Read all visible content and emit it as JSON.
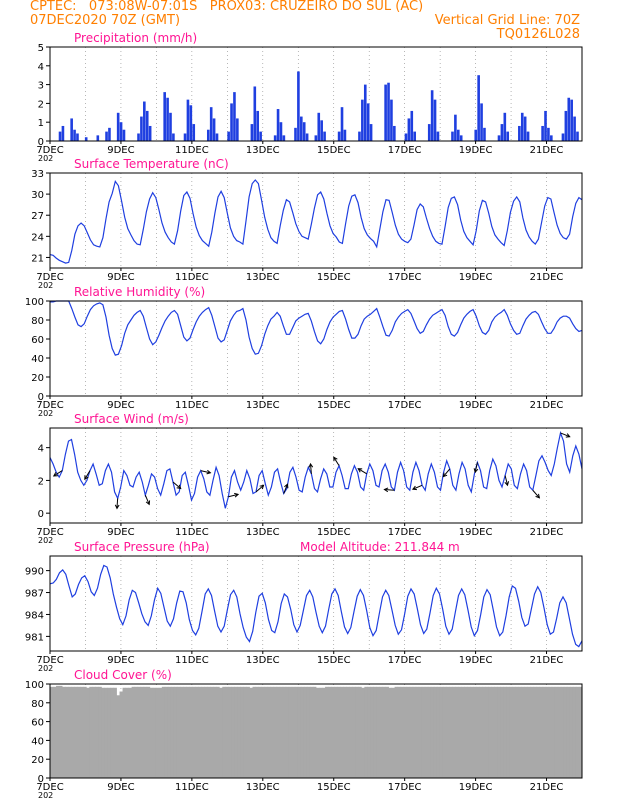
{
  "header": {
    "line1": "CPTEC:   073:08W-07:01S   PROX03: CRUZEIRO DO SUL (AC)",
    "line2_left": "07DEC2020 70Z (GMT)",
    "line2_right": "Vertical Grid Line: 70Z",
    "line3_right": "TQ0126L028",
    "color": "#ff7f00",
    "title_color": "#ff1493",
    "line_color": "#1f3fe0"
  },
  "x_axis": {
    "tick_labels": [
      "7DEC",
      "9DEC",
      "11DEC",
      "13DEC",
      "15DEC",
      "17DEC",
      "19DEC",
      "21DEC"
    ],
    "tick_days": [
      0,
      2,
      4,
      6,
      8,
      10,
      12,
      14
    ],
    "stub_label": "202",
    "range_days": [
      0,
      15
    ]
  },
  "chart_data": [
    {
      "type": "bar",
      "title": "Precipitation (mm/h)",
      "ylim": [
        0,
        5
      ],
      "yticks": [
        "0",
        "1",
        "2",
        "3",
        "4",
        "5"
      ],
      "sample_step_hours": 3,
      "values": [
        0,
        0,
        0,
        0.5,
        0.8,
        0,
        0,
        1.2,
        0.6,
        0.4,
        0,
        0,
        0.2,
        0,
        0,
        0,
        0.3,
        0,
        0,
        0.5,
        0.7,
        0,
        0,
        1.5,
        1.0,
        0.6,
        0,
        0,
        0,
        0,
        0.4,
        1.3,
        2.1,
        1.6,
        0.8,
        0,
        0,
        0,
        0,
        2.6,
        2.3,
        1.5,
        0.4,
        0,
        0,
        0,
        0.4,
        2.2,
        1.9,
        0.9,
        0,
        0,
        0,
        0,
        0.6,
        1.8,
        1.2,
        0.4,
        0,
        0,
        0,
        0.5,
        2.0,
        2.6,
        1.2,
        0,
        0,
        0,
        0,
        0.9,
        2.9,
        1.6,
        0.5,
        0,
        0,
        0,
        0,
        0.3,
        1.7,
        1.0,
        0.3,
        0,
        0,
        0,
        0.7,
        3.7,
        1.3,
        1.0,
        0.4,
        0,
        0,
        0.3,
        1.5,
        1.1,
        0.5,
        0,
        0,
        0,
        0,
        0.5,
        1.8,
        0.6,
        0,
        0,
        0,
        0,
        0.5,
        2.2,
        3.0,
        2.0,
        0.9,
        0,
        0,
        0,
        0,
        3.0,
        3.1,
        2.2,
        0.8,
        0,
        0,
        0,
        0.4,
        1.2,
        1.6,
        0.5,
        0,
        0,
        0,
        0,
        0.9,
        2.7,
        2.2,
        0.5,
        0,
        0,
        0,
        0,
        0.5,
        1.4,
        0.6,
        0.3,
        0,
        0,
        0,
        0,
        0.6,
        3.5,
        2.0,
        0.7,
        0,
        0,
        0,
        0,
        0.3,
        0.9,
        1.5,
        0.5,
        0,
        0,
        0,
        0.8,
        1.5,
        1.3,
        0.5,
        0,
        0,
        0,
        0,
        0.8,
        1.6,
        0.7,
        0.3,
        0,
        0,
        0,
        0.4,
        1.6,
        2.3,
        2.2,
        1.3,
        0.5,
        0
      ]
    },
    {
      "type": "line",
      "title": "Surface Temperature (nC)",
      "ylim": [
        19.5,
        33
      ],
      "yticks": [
        "21",
        "24",
        "27",
        "30",
        "33"
      ],
      "sample_step_hours": 3,
      "values": [
        21.4,
        21.3,
        20.9,
        20.6,
        20.4,
        20.2,
        20.3,
        22.0,
        24.3,
        25.5,
        25.9,
        25.5,
        24.5,
        23.5,
        22.8,
        22.6,
        22.5,
        23.8,
        26.5,
        28.9,
        30.1,
        31.8,
        31.2,
        29.0,
        26.7,
        25.1,
        24.2,
        23.4,
        22.9,
        22.8,
        25.0,
        27.5,
        29.3,
        30.2,
        29.5,
        27.8,
        25.9,
        24.6,
        23.8,
        23.2,
        22.9,
        24.8,
        27.6,
        29.8,
        30.3,
        29.4,
        27.2,
        25.3,
        24.1,
        23.4,
        23.0,
        22.6,
        24.6,
        27.3,
        29.6,
        30.4,
        29.5,
        27.3,
        25.2,
        24.0,
        23.4,
        23.2,
        22.9,
        26.2,
        29.6,
        31.5,
        32.0,
        31.5,
        29.1,
        26.7,
        25.0,
        23.8,
        23.3,
        23.0,
        25.5,
        27.7,
        29.2,
        28.9,
        27.4,
        25.8,
        24.7,
        24.0,
        23.8,
        23.6,
        25.7,
        28.0,
        29.9,
        30.3,
        29.3,
        27.3,
        25.5,
        24.4,
        23.9,
        23.2,
        23.0,
        25.8,
        28.3,
        29.7,
        29.9,
        28.8,
        26.7,
        25.1,
        24.2,
        23.7,
        23.3,
        22.5,
        25.0,
        27.5,
        29.2,
        29.1,
        27.4,
        25.6,
        24.3,
        23.6,
        23.3,
        23.1,
        23.6,
        25.6,
        27.8,
        28.6,
        28.2,
        26.6,
        25.1,
        24.0,
        23.3,
        23.0,
        22.9,
        25.4,
        28.1,
        29.4,
        29.6,
        28.5,
        26.3,
        24.7,
        23.8,
        23.3,
        22.8,
        24.8,
        27.6,
        29.1,
        28.9,
        27.3,
        25.4,
        24.2,
        23.6,
        23.1,
        22.7,
        24.8,
        27.4,
        29.0,
        29.6,
        28.9,
        26.6,
        24.9,
        23.9,
        23.3,
        22.9,
        23.6,
        26.0,
        28.3,
        29.5,
        29.3,
        27.4,
        25.6,
        24.4,
        23.8,
        23.6,
        24.3,
        26.8,
        28.7,
        29.5,
        29.2
      ]
    },
    {
      "type": "line",
      "title": "Relative Humidity (%)",
      "ylim": [
        0,
        100
      ],
      "yticks": [
        "0",
        "20",
        "40",
        "60",
        "80",
        "100"
      ],
      "sample_step_hours": 3,
      "values": [
        99,
        99,
        100,
        100,
        100,
        100,
        100,
        92,
        83,
        75,
        73,
        76,
        84,
        91,
        95,
        97,
        98,
        96,
        83,
        64,
        50,
        43,
        44,
        53,
        66,
        75,
        80,
        85,
        88,
        90,
        84,
        72,
        60,
        54,
        57,
        64,
        72,
        79,
        84,
        88,
        90,
        86,
        74,
        62,
        58,
        61,
        70,
        78,
        84,
        88,
        91,
        93,
        85,
        73,
        61,
        57,
        59,
        69,
        79,
        85,
        89,
        90,
        92,
        80,
        62,
        50,
        44,
        45,
        53,
        65,
        74,
        81,
        84,
        88,
        84,
        74,
        65,
        65,
        72,
        79,
        82,
        84,
        86,
        87,
        79,
        68,
        58,
        55,
        60,
        70,
        78,
        83,
        86,
        89,
        90,
        81,
        70,
        61,
        61,
        65,
        74,
        81,
        84,
        86,
        89,
        92,
        83,
        73,
        64,
        63,
        69,
        78,
        83,
        87,
        89,
        91,
        87,
        79,
        71,
        66,
        68,
        75,
        81,
        85,
        87,
        89,
        91,
        85,
        73,
        65,
        63,
        67,
        75,
        82,
        86,
        89,
        91,
        84,
        74,
        67,
        65,
        69,
        78,
        83,
        86,
        88,
        91,
        85,
        76,
        69,
        65,
        66,
        74,
        81,
        85,
        88,
        89,
        86,
        78,
        71,
        66,
        66,
        71,
        78,
        82,
        84,
        84,
        82,
        76,
        71,
        68,
        69
      ]
    },
    {
      "type": "line",
      "title": "Surface Wind (m/s)",
      "ylim": [
        -0.6,
        5.2
      ],
      "yticks": [
        "0",
        "2",
        "4"
      ],
      "sample_step_hours": 3,
      "values": [
        3.4,
        3.0,
        2.5,
        2.2,
        2.6,
        3.6,
        4.4,
        4.5,
        3.6,
        2.5,
        2.0,
        1.7,
        2.0,
        2.6,
        3.0,
        2.4,
        1.7,
        1.8,
        2.6,
        3.0,
        2.5,
        1.3,
        0.9,
        1.6,
        2.6,
        2.3,
        1.7,
        1.6,
        2.2,
        2.5,
        1.9,
        1.1,
        1.7,
        2.4,
        2.2,
        1.5,
        1.1,
        1.8,
        2.6,
        2.7,
        1.9,
        1.1,
        1.3,
        2.3,
        2.5,
        1.7,
        0.8,
        1.2,
        2.2,
        2.6,
        2.1,
        1.3,
        1.1,
        2.0,
        2.8,
        2.3,
        1.2,
        0.3,
        1.0,
        2.2,
        2.6,
        1.9,
        1.4,
        1.9,
        2.6,
        2.1,
        1.2,
        1.3,
        2.3,
        2.6,
        1.8,
        1.1,
        1.6,
        2.5,
        2.7,
        1.9,
        1.2,
        1.5,
        2.5,
        2.8,
        2.2,
        1.4,
        1.3,
        2.2,
        2.8,
        2.4,
        1.5,
        1.3,
        2.1,
        2.7,
        2.4,
        1.6,
        1.6,
        2.5,
        2.9,
        2.3,
        1.5,
        1.5,
        2.4,
        2.9,
        2.5,
        1.6,
        1.4,
        2.4,
        3.0,
        2.6,
        1.7,
        1.6,
        2.6,
        3.0,
        2.5,
        1.6,
        1.4,
        2.5,
        3.1,
        2.6,
        1.6,
        1.4,
        2.5,
        3.1,
        2.6,
        1.7,
        1.4,
        2.4,
        3.0,
        2.5,
        1.6,
        1.4,
        2.5,
        3.2,
        2.7,
        1.7,
        1.4,
        2.4,
        3.1,
        2.7,
        1.7,
        1.3,
        2.4,
        3.1,
        2.6,
        1.6,
        1.5,
        2.6,
        3.3,
        2.9,
        2.0,
        1.6,
        2.3,
        3.0,
        2.7,
        1.7,
        1.5,
        2.4,
        3.0,
        2.6,
        1.6,
        1.4,
        2.3,
        3.2,
        3.5,
        3.1,
        2.6,
        2.3,
        3.0,
        4.0,
        4.9,
        4.4,
        3.0,
        2.5,
        3.5,
        4.1,
        3.6,
        2.7
      ]
    },
    {
      "type": "line",
      "title": "Surface Pressure (hPa)",
      "annotation": "Model Altitude: 211.844 m",
      "ylim": [
        979,
        992
      ],
      "yticks": [
        "981",
        "984",
        "987",
        "990"
      ],
      "sample_step_hours": 3,
      "values": [
        988.2,
        988.3,
        988.8,
        989.7,
        990.1,
        989.5,
        987.9,
        986.4,
        986.8,
        988.1,
        989.0,
        989.3,
        988.5,
        987.1,
        986.6,
        987.6,
        989.5,
        990.7,
        990.5,
        989.0,
        986.8,
        985.0,
        983.4,
        982.6,
        983.8,
        986.0,
        987.3,
        987.0,
        985.6,
        984.1,
        983.0,
        982.5,
        983.8,
        986.0,
        987.6,
        986.9,
        985.0,
        983.1,
        982.4,
        983.4,
        985.6,
        987.2,
        987.1,
        985.6,
        983.3,
        981.8,
        981.2,
        982.1,
        984.4,
        986.8,
        987.5,
        986.6,
        984.4,
        982.4,
        981.6,
        982.4,
        984.6,
        986.7,
        987.3,
        986.4,
        984.1,
        982.2,
        980.9,
        980.3,
        981.7,
        984.3,
        986.5,
        986.9,
        985.6,
        983.3,
        981.8,
        981.5,
        983.0,
        985.5,
        986.8,
        986.4,
        984.7,
        982.6,
        981.6,
        982.5,
        984.5,
        986.6,
        987.3,
        986.4,
        984.3,
        982.4,
        981.5,
        982.4,
        984.7,
        986.8,
        987.5,
        986.6,
        984.4,
        982.3,
        981.4,
        982.2,
        984.4,
        986.5,
        987.4,
        986.6,
        984.5,
        982.2,
        981.1,
        981.8,
        984.1,
        986.4,
        987.3,
        986.6,
        984.6,
        982.5,
        981.3,
        981.9,
        984.1,
        986.5,
        987.5,
        986.8,
        984.8,
        982.6,
        981.4,
        982.0,
        984.2,
        986.6,
        987.6,
        986.8,
        984.7,
        982.4,
        981.3,
        982.0,
        984.3,
        986.6,
        987.5,
        986.7,
        984.6,
        982.3,
        981.1,
        981.8,
        984.0,
        986.4,
        987.4,
        986.7,
        984.6,
        982.3,
        981.1,
        981.6,
        983.8,
        986.4,
        987.9,
        987.6,
        985.8,
        983.6,
        982.4,
        982.7,
        984.7,
        986.8,
        987.8,
        987.0,
        984.9,
        982.6,
        981.3,
        981.6,
        983.5,
        985.6,
        986.4,
        985.6,
        983.5,
        981.3,
        979.9,
        979.6,
        980.4
      ]
    },
    {
      "type": "area",
      "title": "Cloud Cover (%)",
      "ylim": [
        0,
        100
      ],
      "yticks": [
        "0",
        "20",
        "40",
        "60",
        "80",
        "100"
      ],
      "fill_color": "#a9a9a9",
      "sample_step_hours": 3,
      "values": [
        97,
        97,
        98,
        98,
        97,
        97,
        97,
        97,
        97,
        97,
        97,
        97,
        96,
        97,
        97,
        97,
        97,
        96,
        96,
        96,
        96,
        96,
        88,
        92,
        96,
        96,
        96,
        97,
        97,
        97,
        97,
        97,
        97,
        96,
        96,
        96,
        96,
        97,
        97,
        97,
        97,
        97,
        97,
        97,
        97,
        97,
        97,
        97,
        97,
        97,
        97,
        97,
        97,
        97,
        97,
        97,
        96,
        97,
        97,
        97,
        97,
        97,
        97,
        97,
        97,
        97,
        96,
        97,
        97,
        97,
        97,
        97,
        97,
        97,
        97,
        97,
        97,
        97,
        97,
        97,
        97,
        97,
        97,
        97,
        97,
        97,
        97,
        97,
        96,
        96,
        96,
        97,
        97,
        97,
        97,
        97,
        97,
        97,
        97,
        97,
        97,
        97,
        97,
        96,
        97,
        97,
        97,
        97,
        97,
        97,
        97,
        97,
        96,
        96,
        97,
        97,
        97,
        97,
        97,
        97,
        97,
        97,
        97,
        97,
        97,
        97,
        97,
        97,
        97,
        97,
        97,
        97,
        97,
        97,
        97,
        97,
        97,
        97,
        97,
        97,
        97,
        97,
        97,
        97,
        97,
        97,
        97,
        97,
        97,
        97,
        97,
        97,
        97,
        97,
        97,
        97,
        97,
        97,
        97,
        97,
        97,
        97,
        97,
        97,
        97,
        97,
        97,
        97,
        97,
        97,
        97,
        97,
        97,
        97,
        97,
        97
      ]
    }
  ]
}
